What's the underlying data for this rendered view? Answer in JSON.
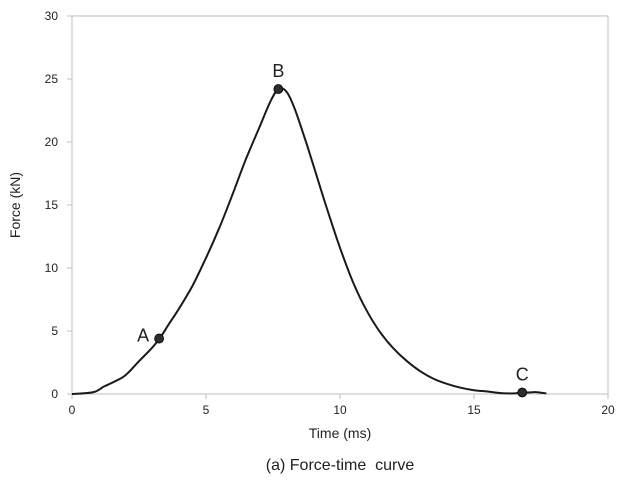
{
  "chart_data": {
    "type": "line",
    "title": "",
    "caption": "(a) Force-time  curve",
    "xlabel": "Time (ms)",
    "ylabel": "Force (kN)",
    "xlim": [
      0,
      20
    ],
    "ylim": [
      0,
      30
    ],
    "xticks": [
      "0",
      "5",
      "10",
      "15",
      "20"
    ],
    "yticks": [
      "0",
      "5",
      "10",
      "15",
      "20",
      "25",
      "30"
    ],
    "grid": false,
    "legend": "none",
    "colors": {
      "line": "#1a1a1a",
      "marker": "#2b2b2b",
      "axis": "#bfbfbf"
    },
    "series": [
      {
        "x": [
          0,
          0.8,
          1.2,
          1.6,
          2.0,
          2.5,
          3.0,
          3.3,
          3.6,
          4.0,
          4.5,
          5.0,
          5.5,
          6.0,
          6.5,
          7.0,
          7.4,
          7.7,
          8.0,
          8.3,
          8.7,
          9.0,
          9.5,
          10.0,
          10.5,
          11.0,
          11.5,
          12.0,
          12.5,
          13.0,
          13.5,
          14.0,
          14.5,
          15.0,
          15.5,
          16.0,
          16.5,
          16.8,
          17.0,
          17.3,
          17.7
        ],
        "y": [
          0,
          0.15,
          0.6,
          1.0,
          1.5,
          2.6,
          3.7,
          4.5,
          5.5,
          6.8,
          8.6,
          10.8,
          13.2,
          15.9,
          18.7,
          21.2,
          23.2,
          24.2,
          24.0,
          22.7,
          20.2,
          18.2,
          14.8,
          11.6,
          8.8,
          6.6,
          4.9,
          3.6,
          2.6,
          1.8,
          1.2,
          0.8,
          0.5,
          0.3,
          0.2,
          0.07,
          0.05,
          0.12,
          0.12,
          0.15,
          0.05
        ]
      }
    ],
    "points": [
      {
        "label": "A",
        "x": 3.25,
        "y": 4.4
      },
      {
        "label": "B",
        "x": 7.7,
        "y": 24.2
      },
      {
        "label": "C",
        "x": 16.8,
        "y": 0.12
      }
    ]
  }
}
